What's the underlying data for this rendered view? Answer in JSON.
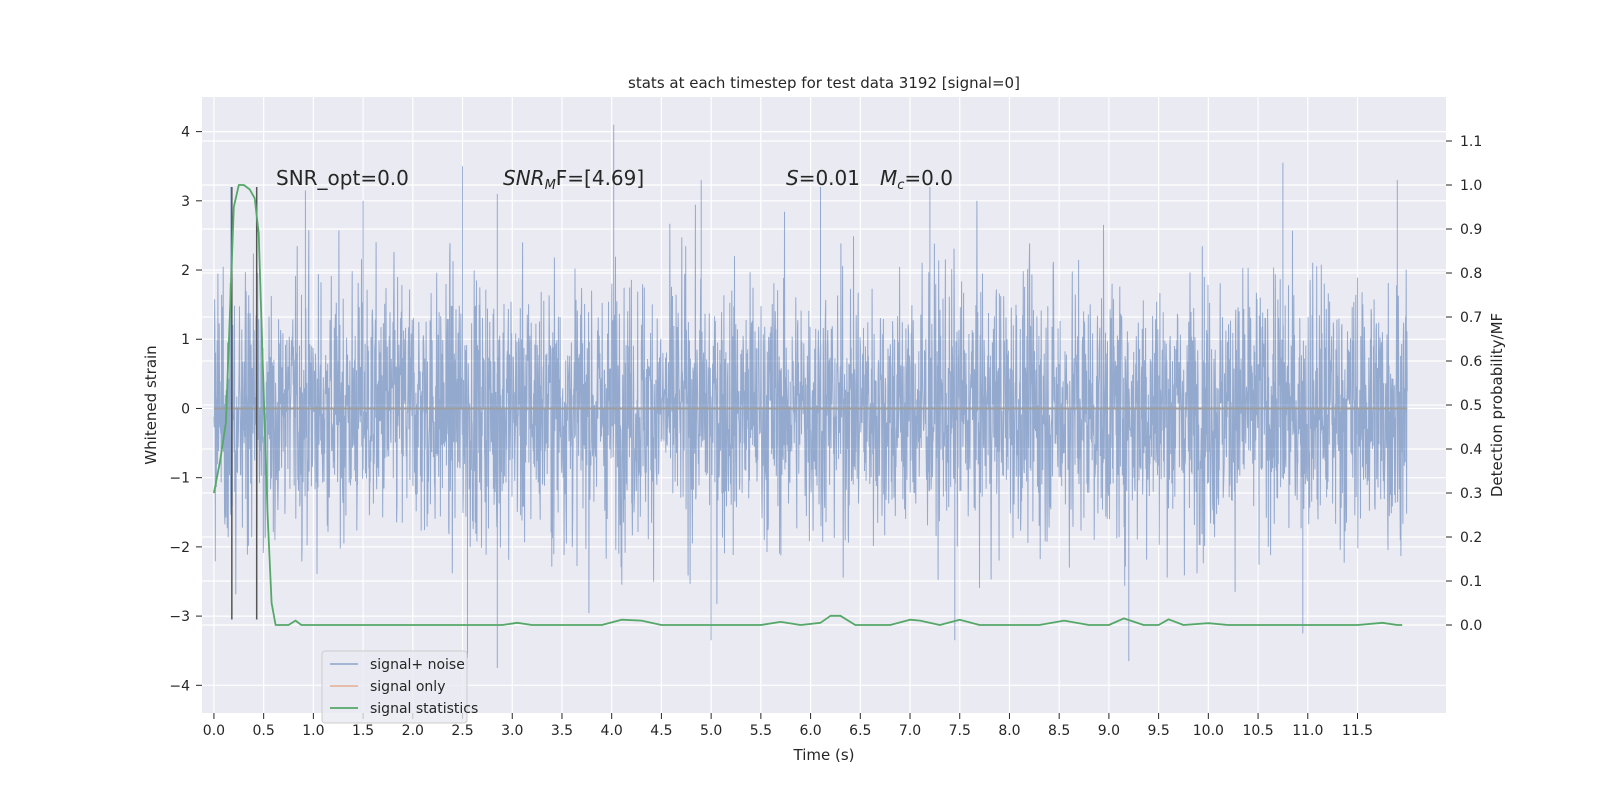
{
  "chart_data": {
    "type": "line",
    "title": "stats at each timestep for test data 3192 [signal=0]",
    "xlabel": "Time (s)",
    "ylabel": "Whitened strain",
    "ylabel_right": "Detection probability/MF",
    "xlim": [
      -0.12,
      12.39
    ],
    "ylim": [
      -4.4,
      4.5
    ],
    "ylim_right": [
      -0.2,
      1.2
    ],
    "x_ticks": [
      0.0,
      0.5,
      1.0,
      1.5,
      2.0,
      2.5,
      3.0,
      3.5,
      4.0,
      4.5,
      5.0,
      5.5,
      6.0,
      6.5,
      7.0,
      7.5,
      8.0,
      8.5,
      9.0,
      9.5,
      10.0,
      10.5,
      11.0,
      11.5
    ],
    "x_tick_labels": [
      "0.0",
      "0.5",
      "1.0",
      "1.5",
      "2.0",
      "2.5",
      "3.0",
      "3.5",
      "4.0",
      "4.5",
      "5.0",
      "5.5",
      "6.0",
      "6.5",
      "7.0",
      "7.5",
      "8.0",
      "8.5",
      "9.0",
      "9.5",
      "10.0",
      "10.5",
      "11.0",
      "11.5"
    ],
    "y_ticks": [
      -4,
      -3,
      -2,
      -1,
      0,
      1,
      2,
      3,
      4
    ],
    "y_tick_labels": [
      "−4",
      "−3",
      "−2",
      "−1",
      "0",
      "1",
      "2",
      "3",
      "4"
    ],
    "y_ticks_right": [
      0.0,
      0.1,
      0.2,
      0.3,
      0.4,
      0.5,
      0.6,
      0.7,
      0.8,
      0.9,
      1.0,
      1.1
    ],
    "y_tick_labels_right": [
      "0.0",
      "0.1",
      "0.2",
      "0.3",
      "0.4",
      "0.5",
      "0.6",
      "0.7",
      "0.8",
      "0.9",
      "1.0",
      "1.1"
    ],
    "grid": true,
    "legend_position": "lower-left",
    "colors": {
      "signal_noise": "#4c72b0",
      "signal_only": "#dd8452",
      "signal_statistics": "#55a868",
      "markers": "#555555",
      "background": "#eaeaf2"
    },
    "series": [
      {
        "name": "signal+ noise",
        "axis": "left",
        "style": "dense noise",
        "x_range": [
          0.0,
          12.0
        ],
        "typical_amplitude": 1.3,
        "max": 4.1,
        "min": -3.75,
        "peaks": [
          {
            "x": 0.17,
            "y": 3.2
          },
          {
            "x": 0.92,
            "y": 3.15
          },
          {
            "x": 1.5,
            "y": 3.0
          },
          {
            "x": 2.5,
            "y": 3.5
          },
          {
            "x": 2.85,
            "y": 3.1
          },
          {
            "x": 4.02,
            "y": 4.1
          },
          {
            "x": 4.9,
            "y": 3.3
          },
          {
            "x": 6.1,
            "y": 3.2
          },
          {
            "x": 7.2,
            "y": 3.2
          },
          {
            "x": 10.75,
            "y": 3.55
          },
          {
            "x": 11.9,
            "y": 3.3
          }
        ],
        "troughs": [
          {
            "x": 2.55,
            "y": -3.6
          },
          {
            "x": 2.85,
            "y": -3.75
          },
          {
            "x": 5.0,
            "y": -3.35
          },
          {
            "x": 7.45,
            "y": -3.35
          },
          {
            "x": 9.2,
            "y": -3.65
          },
          {
            "x": 10.95,
            "y": -3.25
          }
        ]
      },
      {
        "name": "signal only",
        "axis": "left",
        "x": [
          0.0,
          12.0
        ],
        "y": [
          0.0,
          0.0
        ]
      },
      {
        "name": "signal statistics",
        "axis": "right",
        "x": [
          0.0,
          0.06,
          0.12,
          0.16,
          0.2,
          0.25,
          0.3,
          0.36,
          0.41,
          0.45,
          0.49,
          0.54,
          0.58,
          0.62,
          0.68,
          0.75,
          0.82,
          0.88,
          0.95,
          1.0,
          2.0,
          2.9,
          3.05,
          3.2,
          3.4,
          3.9,
          4.1,
          4.3,
          4.5,
          4.7,
          5.0,
          5.5,
          5.7,
          5.9,
          6.1,
          6.2,
          6.3,
          6.45,
          6.6,
          6.8,
          7.0,
          7.1,
          7.3,
          7.5,
          7.7,
          8.0,
          8.3,
          8.55,
          8.8,
          9.0,
          9.15,
          9.35,
          9.5,
          9.6,
          9.75,
          10.0,
          10.2,
          10.5,
          10.8,
          11.0,
          11.5,
          11.75,
          11.9,
          11.95
        ],
        "y": [
          0.3,
          0.37,
          0.46,
          0.7,
          0.95,
          1.0,
          1.0,
          0.99,
          0.97,
          0.89,
          0.6,
          0.25,
          0.05,
          0.0,
          0.0,
          0.0,
          0.01,
          0.0,
          0.0,
          0.0,
          0.0,
          0.0,
          0.005,
          0.0,
          0.0,
          0.0,
          0.012,
          0.01,
          0.0,
          0.0,
          0.0,
          0.0,
          0.007,
          0.0,
          0.005,
          0.021,
          0.021,
          0.0,
          0.0,
          0.0,
          0.012,
          0.01,
          0.0,
          0.012,
          0.0,
          0.0,
          0.0,
          0.01,
          0.0,
          0.0,
          0.015,
          0.0,
          0.0,
          0.013,
          0.0,
          0.004,
          0.0,
          0.0,
          0.0,
          0.0,
          0.0,
          0.005,
          0.0,
          0.0
        ]
      }
    ],
    "vertical_markers": [
      {
        "x": 0.18,
        "y_range": [
          -3.05,
          3.2
        ]
      },
      {
        "x": 0.43,
        "y_range": [
          -3.05,
          3.2
        ]
      }
    ],
    "annotations": [
      {
        "id": "snr-opt",
        "text": "SNR_opt=0.0",
        "x": 0.2,
        "y": 3.13
      },
      {
        "id": "snr-mf",
        "text_base": "SNR",
        "text_sub": "M",
        "text_rest": "F=[4.69]",
        "x": 2.6,
        "y": 3.13
      },
      {
        "id": "stat-s",
        "text_italic": "S",
        "text_rest": "=0.01",
        "x": 5.6,
        "y": 3.13
      },
      {
        "id": "stat-mc",
        "text_base": "M",
        "text_sub": "c",
        "text_rest": "=0.0",
        "x": 6.6,
        "y": 3.13
      }
    ],
    "legend": [
      {
        "label": "signal+ noise",
        "color": "#4c72b0"
      },
      {
        "label": "signal only",
        "color": "#dd8452"
      },
      {
        "label": "signal statistics",
        "color": "#55a868"
      }
    ]
  }
}
